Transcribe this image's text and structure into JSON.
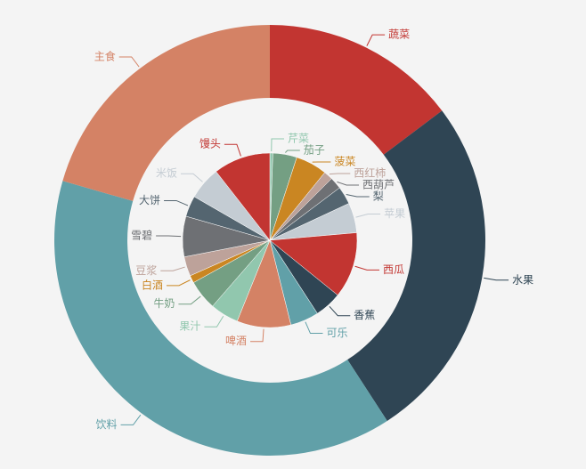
{
  "chart_data": {
    "type": "pie",
    "series": [
      {
        "categories": [
          "蔬菜",
          "水果",
          "饮料",
          "主食"
        ],
        "values": [
          53,
          94,
          139,
          74
        ],
        "colors": [
          "#c23531",
          "#2f4554",
          "#61a0a8",
          "#d48265"
        ]
      },
      {
        "categories": [
          "芹菜",
          "茄子",
          "菠菜",
          "西红柿",
          "西葫芦",
          "梨",
          "苹果",
          "西瓜",
          "香蕉",
          "可乐",
          "啤酒",
          "果汁",
          "牛奶",
          "白酒",
          "豆浆",
          "雪碧",
          "大饼",
          "米饭",
          "馒头"
        ],
        "values": [
          2,
          16,
          21,
          6,
          8,
          12,
          20,
          44,
          18,
          19,
          36,
          19,
          20,
          5,
          13,
          27,
          14,
          22,
          38
        ],
        "colors": [
          "#91c7ae",
          "#749f83",
          "#ca8622",
          "#bda29a",
          "#6e7074",
          "#546570",
          "#c4ccd3",
          "#c23531",
          "#2f4554",
          "#61a0a8",
          "#d48265",
          "#91c7ae",
          "#749f83",
          "#ca8622",
          "#bda29a",
          "#6e7074",
          "#546570",
          "#c4ccd3",
          "#c23531"
        ]
      }
    ]
  }
}
